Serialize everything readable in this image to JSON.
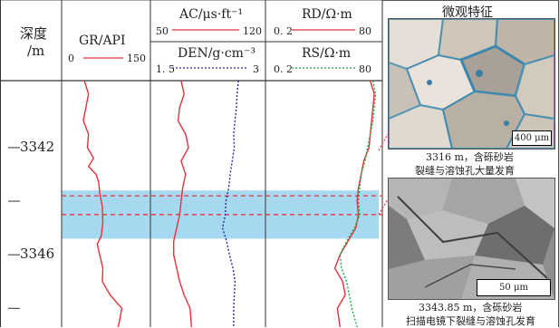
{
  "header": {
    "depth_title": "深度",
    "depth_unit": "/m",
    "gr": {
      "label": "GR/API",
      "min": "0",
      "max": "150"
    },
    "ac": {
      "label": "AC/μs·ft⁻¹",
      "min": "50",
      "max": "120"
    },
    "den": {
      "label": "DEN/g·cm⁻³",
      "min": "1. 5",
      "max": "3"
    },
    "rd": {
      "label": "RD/Ω·m",
      "min": "0. 2",
      "max": "80"
    },
    "rs": {
      "label": "RS/Ω·m",
      "min": "0. 2",
      "max": "80"
    },
    "micro_title": "微观特征"
  },
  "depth_ticks": [
    {
      "label": "3342",
      "depth": 3342
    },
    {
      "label": "",
      "depth": 3344
    },
    {
      "label": "3346",
      "depth": 3346
    },
    {
      "label": "",
      "depth": 3348
    }
  ],
  "depth_range": [
    3339.5,
    3348.7
  ],
  "highlight_zone": [
    3343.6,
    3345.4
  ],
  "marker_depths": [
    3343.8,
    3344.5
  ],
  "photos": [
    {
      "scale_bar": "400 μm",
      "caption_line1": "3316 m，含砾砂岩",
      "caption_line2": "裂缝与溶蚀孔大量发育"
    },
    {
      "scale_bar": "50 μm",
      "caption_line1": "3343.85 m，含砾砂岩",
      "caption_line2": "扫描电镜下裂缝与溶蚀孔发育"
    }
  ],
  "colors": {
    "highlight": "#a6d8f0",
    "marker": "#e8303a",
    "gr": "#e8303a",
    "ac": "#e8303a",
    "den": "#2a2aa8",
    "rd": "#e8303a",
    "rs": "#1aa84a"
  },
  "chart_data": {
    "type": "line",
    "depth_axis": {
      "label": "深度/m",
      "range": [
        3339.5,
        3348.7
      ],
      "reversed": true
    },
    "tracks": [
      {
        "name": "GR/API",
        "min": 0,
        "max": 150,
        "style": "solid",
        "color": "#e8303a",
        "points": [
          [
            3339.5,
            32
          ],
          [
            3340.0,
            40
          ],
          [
            3340.5,
            35
          ],
          [
            3341.0,
            30
          ],
          [
            3341.5,
            40
          ],
          [
            3342.0,
            38
          ],
          [
            3342.4,
            50
          ],
          [
            3342.7,
            40
          ],
          [
            3343.0,
            55
          ],
          [
            3343.3,
            60
          ],
          [
            3343.7,
            62
          ],
          [
            3344.2,
            67
          ],
          [
            3344.8,
            68
          ],
          [
            3345.3,
            65
          ],
          [
            3345.6,
            57
          ],
          [
            3346.0,
            62
          ],
          [
            3346.5,
            68
          ],
          [
            3347.0,
            67
          ],
          [
            3347.5,
            82
          ],
          [
            3348.0,
            105
          ],
          [
            3348.5,
            100
          ],
          [
            3348.7,
            98
          ]
        ]
      },
      {
        "name": "AC/μs·ft⁻¹",
        "min": 50,
        "max": 120,
        "style": "solid",
        "color": "#e8303a",
        "points": [
          [
            3339.5,
            67
          ],
          [
            3340.0,
            69
          ],
          [
            3340.5,
            66
          ],
          [
            3341.0,
            65
          ],
          [
            3341.5,
            70
          ],
          [
            3342.0,
            72
          ],
          [
            3342.5,
            67
          ],
          [
            3343.0,
            70
          ],
          [
            3343.5,
            68
          ],
          [
            3344.0,
            67
          ],
          [
            3344.5,
            66
          ],
          [
            3345.0,
            64
          ],
          [
            3345.5,
            62
          ],
          [
            3346.0,
            62
          ],
          [
            3346.5,
            64
          ],
          [
            3347.0,
            66
          ],
          [
            3347.5,
            69
          ],
          [
            3348.0,
            73
          ],
          [
            3348.7,
            74
          ]
        ]
      },
      {
        "name": "DEN/g·cm⁻³",
        "min": 1.5,
        "max": 3,
        "style": "dotted",
        "color": "#2a2aa8",
        "points": [
          [
            3339.5,
            2.69
          ],
          [
            3340.0,
            2.67
          ],
          [
            3340.5,
            2.66
          ],
          [
            3341.0,
            2.64
          ],
          [
            3341.5,
            2.62
          ],
          [
            3342.0,
            2.63
          ],
          [
            3342.5,
            2.6
          ],
          [
            3343.0,
            2.57
          ],
          [
            3343.5,
            2.55
          ],
          [
            3344.0,
            2.51
          ],
          [
            3344.5,
            2.5
          ],
          [
            3345.0,
            2.46
          ],
          [
            3345.5,
            2.52
          ],
          [
            3346.0,
            2.56
          ],
          [
            3346.5,
            2.61
          ],
          [
            3347.0,
            2.64
          ],
          [
            3347.5,
            2.63
          ],
          [
            3348.0,
            2.62
          ],
          [
            3348.7,
            2.62
          ]
        ]
      },
      {
        "name": "RD/Ω·m",
        "min": 0.2,
        "max": 80,
        "style": "solid",
        "color": "#e8303a",
        "points": [
          [
            3339.5,
            75
          ],
          [
            3340.0,
            78
          ],
          [
            3340.5,
            77
          ],
          [
            3341.0,
            76
          ],
          [
            3341.5,
            75
          ],
          [
            3342.0,
            74
          ],
          [
            3342.5,
            70
          ],
          [
            3343.0,
            68
          ],
          [
            3343.5,
            66
          ],
          [
            3344.0,
            65
          ],
          [
            3344.5,
            66
          ],
          [
            3345.0,
            64
          ],
          [
            3345.5,
            58
          ],
          [
            3346.0,
            52
          ],
          [
            3346.5,
            48
          ],
          [
            3347.0,
            54
          ],
          [
            3347.5,
            56
          ],
          [
            3348.0,
            50
          ],
          [
            3348.7,
            52
          ]
        ]
      },
      {
        "name": "RS/Ω·m",
        "min": 0.2,
        "max": 80,
        "style": "dotted",
        "color": "#1aa84a",
        "points": [
          [
            3339.5,
            77
          ],
          [
            3340.0,
            79
          ],
          [
            3340.5,
            78
          ],
          [
            3341.0,
            77
          ],
          [
            3341.5,
            75
          ],
          [
            3342.0,
            73
          ],
          [
            3342.5,
            71
          ],
          [
            3343.0,
            68
          ],
          [
            3343.5,
            67
          ],
          [
            3344.0,
            66
          ],
          [
            3344.5,
            67
          ],
          [
            3345.0,
            63
          ],
          [
            3345.5,
            57
          ],
          [
            3346.0,
            52
          ],
          [
            3346.5,
            53
          ],
          [
            3347.0,
            57
          ],
          [
            3347.5,
            59
          ],
          [
            3348.0,
            61
          ],
          [
            3348.7,
            65
          ]
        ]
      }
    ]
  }
}
